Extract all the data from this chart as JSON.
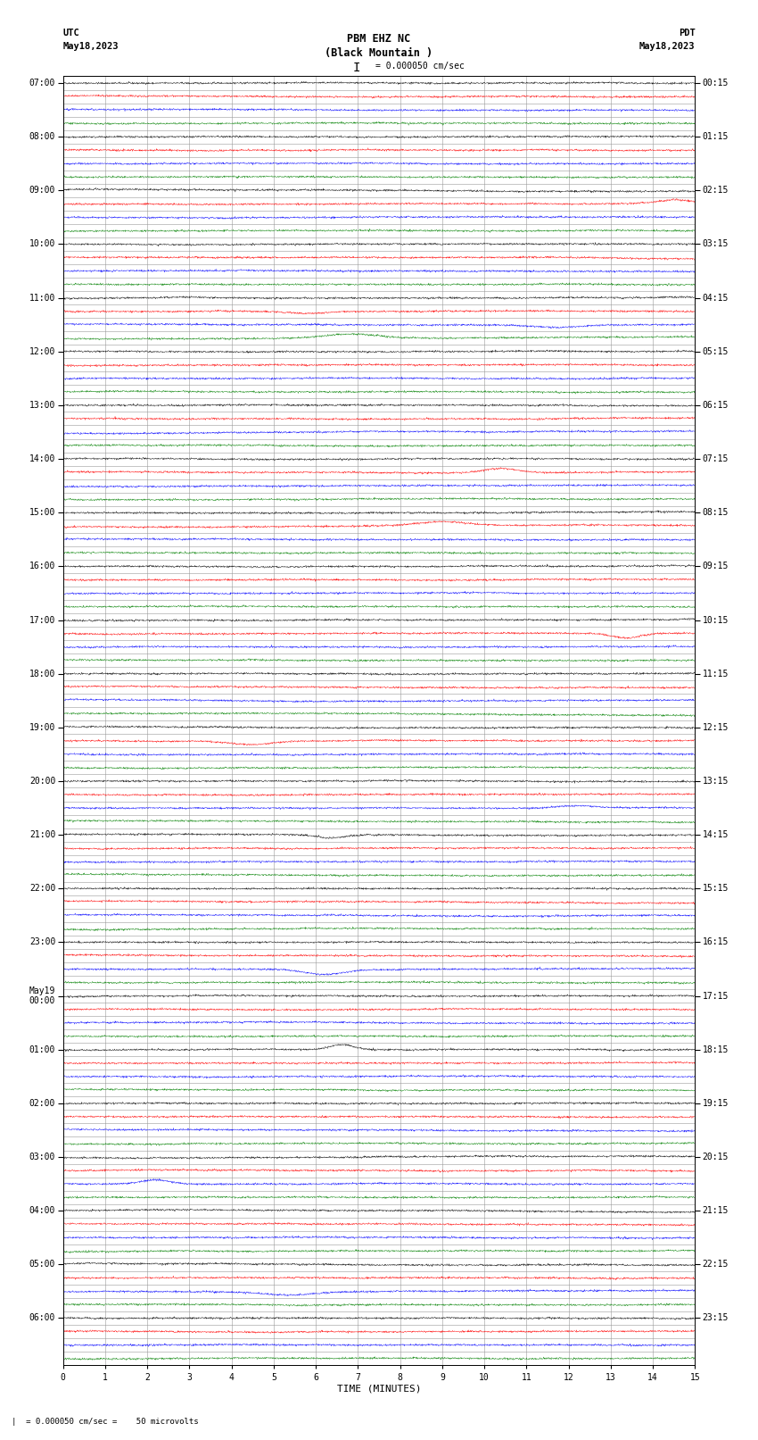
{
  "title_line1": "PBM EHZ NC",
  "title_line2": "(Black Mountain )",
  "scale_text": "I = 0.000050 cm/sec",
  "footer_text": "= 0.000050 cm/sec =    50 microvolts",
  "xlabel": "TIME (MINUTES)",
  "left_label": "UTC",
  "left_date": "May18,2023",
  "right_label": "PDT",
  "right_date": "May18,2023",
  "utc_hour_labels": [
    "07:00",
    "08:00",
    "09:00",
    "10:00",
    "11:00",
    "12:00",
    "13:00",
    "14:00",
    "15:00",
    "16:00",
    "17:00",
    "18:00",
    "19:00",
    "20:00",
    "21:00",
    "22:00",
    "23:00",
    "May19\n00:00",
    "01:00",
    "02:00",
    "03:00",
    "04:00",
    "05:00",
    "06:00"
  ],
  "pdt_hour_labels": [
    "00:15",
    "01:15",
    "02:15",
    "03:15",
    "04:15",
    "05:15",
    "06:15",
    "07:15",
    "08:15",
    "09:15",
    "10:15",
    "11:15",
    "12:15",
    "13:15",
    "14:15",
    "15:15",
    "16:15",
    "17:15",
    "18:15",
    "19:15",
    "20:15",
    "21:15",
    "22:15",
    "23:15"
  ],
  "n_hours": 24,
  "rows_per_hour": 4,
  "n_minutes": 15,
  "row_colors": [
    "black",
    "red",
    "blue",
    "green"
  ],
  "bg_color": "white",
  "grid_color": "#999999",
  "random_seed": 42,
  "trace_base_amp": 0.025,
  "trace_hf_amp": 0.035,
  "burst_prob": 0.15,
  "burst_amp_min": 0.15,
  "burst_amp_max": 0.4
}
